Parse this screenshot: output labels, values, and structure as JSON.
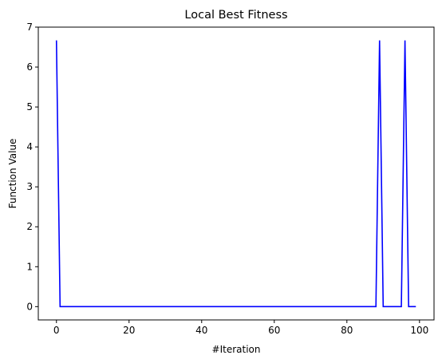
{
  "chart_data": {
    "type": "line",
    "title": "Local Best Fitness",
    "xlabel": "#Iteration",
    "ylabel": "Function Value",
    "xlim": [
      -5,
      104
    ],
    "ylim": [
      -0.333,
      7
    ],
    "xticks": [
      0,
      20,
      40,
      60,
      80,
      100
    ],
    "yticks": [
      0,
      1,
      2,
      3,
      4,
      5,
      6,
      7
    ],
    "grid": false,
    "series": [
      {
        "color": "#0000ff",
        "x": [
          0,
          1,
          88,
          89,
          90,
          95,
          96,
          97,
          99
        ],
        "y": [
          6.667,
          0,
          0,
          6.667,
          0,
          0,
          6.667,
          0,
          0
        ]
      }
    ]
  }
}
